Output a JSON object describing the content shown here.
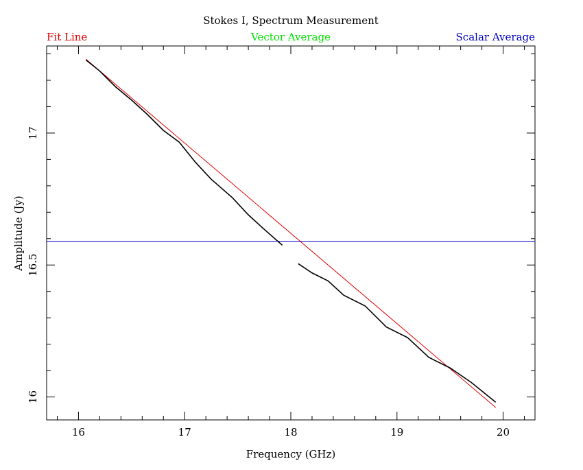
{
  "chart_data": {
    "type": "line",
    "title": "Stokes I, Spectrum Measurement",
    "legend": [
      {
        "label": "Fit Line",
        "color": "#e00000",
        "placement": "top-left"
      },
      {
        "label": "Vector Average",
        "color": "#00e000",
        "placement": "top-center"
      },
      {
        "label": "Scalar Average",
        "color": "#0000c0",
        "placement": "top-right"
      }
    ],
    "xlabel": "Frequency (GHz)",
    "ylabel": "Amplitude (Jy)",
    "xlim": [
      15.7,
      20.3
    ],
    "ylim": [
      15.913,
      17.33
    ],
    "x_ticks": [
      16,
      17,
      18,
      19,
      20
    ],
    "x_tick_labels": [
      "16",
      "17",
      "18",
      "19",
      "20"
    ],
    "y_ticks": [
      16,
      16.5,
      17
    ],
    "y_tick_labels": [
      "16",
      "16.5",
      "17"
    ],
    "grid": false,
    "series": [
      {
        "name": "Fit Line",
        "color": "#e00000",
        "x": [
          16.07,
          19.93
        ],
        "y": [
          17.28,
          15.96
        ]
      },
      {
        "name": "Scalar Average",
        "color": "#0000c0",
        "x": [
          15.7,
          20.3
        ],
        "y": [
          16.59,
          16.59
        ]
      },
      {
        "color": "#000000",
        "x": [
          16.07,
          16.2,
          16.35,
          16.5,
          16.65,
          16.8,
          16.95,
          17.1,
          17.25,
          17.45,
          17.6,
          17.75,
          17.92
        ],
        "y": [
          17.277,
          17.235,
          17.175,
          17.125,
          17.07,
          17.01,
          16.965,
          16.89,
          16.825,
          16.755,
          16.69,
          16.635,
          16.575
        ]
      },
      {
        "color": "#000000",
        "x": [
          18.07,
          18.2,
          18.35,
          18.5,
          18.7,
          18.9,
          19.1,
          19.3,
          19.5,
          19.7,
          19.93
        ],
        "y": [
          16.505,
          16.47,
          16.44,
          16.385,
          16.345,
          16.265,
          16.225,
          16.15,
          16.11,
          16.055,
          15.98
        ]
      }
    ]
  }
}
